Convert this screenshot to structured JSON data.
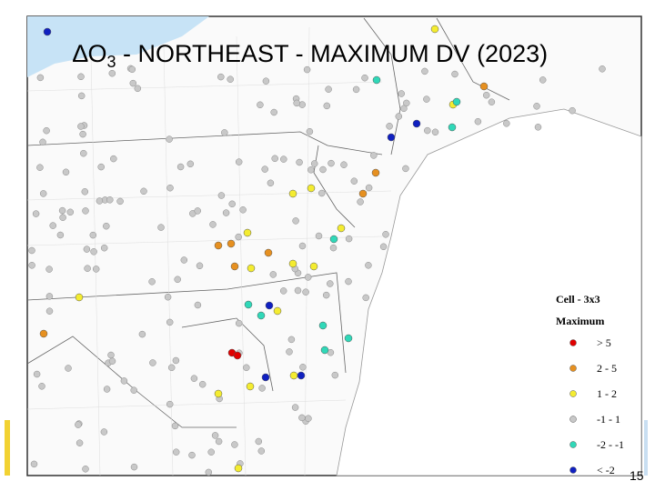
{
  "title": {
    "main": "∆O",
    "subscript": "3",
    "rest": " - NORTHEAST - MAXIMUM DV (2023)"
  },
  "legend": {
    "title": "Cell - 3x3",
    "subtitle": "Maximum",
    "items": [
      {
        "label": "> 5",
        "color": "#e00000"
      },
      {
        "label": "2 - 5",
        "color": "#e69020"
      },
      {
        "label": "1 - 2",
        "color": "#f4ec30"
      },
      {
        "label": "-1 - 1",
        "color": "#c8c8c8"
      },
      {
        "label": "-2 - -1",
        "color": "#30d8b8"
      },
      {
        "label": "< -2",
        "color": "#1020c0"
      }
    ]
  },
  "page_number": "15"
}
